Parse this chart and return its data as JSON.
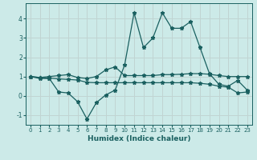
{
  "xlabel": "Humidex (Indice chaleur)",
  "ylabel": "",
  "background_color": "#cceae8",
  "grid_color": "#c0d4d2",
  "line_color": "#1a6060",
  "xlim": [
    -0.5,
    23.5
  ],
  "ylim": [
    -1.5,
    4.8
  ],
  "yticks": [
    -1,
    0,
    1,
    2,
    3,
    4
  ],
  "xticks": [
    0,
    1,
    2,
    3,
    4,
    5,
    6,
    7,
    8,
    9,
    10,
    11,
    12,
    13,
    14,
    15,
    16,
    17,
    18,
    19,
    20,
    21,
    22,
    23
  ],
  "line1_x": [
    0,
    1,
    2,
    3,
    4,
    5,
    6,
    7,
    8,
    9,
    10,
    11,
    12,
    13,
    14,
    15,
    16,
    17,
    18,
    19,
    20,
    21,
    22,
    23
  ],
  "line1_y": [
    1.0,
    0.9,
    0.9,
    0.2,
    0.15,
    -0.3,
    -1.2,
    -0.35,
    0.05,
    0.3,
    1.6,
    4.3,
    2.5,
    3.0,
    4.3,
    3.5,
    3.5,
    3.85,
    2.5,
    1.15,
    0.6,
    0.5,
    0.8,
    0.3
  ],
  "line2_x": [
    0,
    1,
    2,
    3,
    4,
    5,
    6,
    7,
    8,
    9,
    10,
    11,
    12,
    13,
    14,
    15,
    16,
    17,
    18,
    19,
    20,
    21,
    22,
    23
  ],
  "line2_y": [
    1.0,
    0.95,
    1.0,
    1.05,
    1.1,
    0.95,
    0.9,
    1.0,
    1.35,
    1.5,
    1.05,
    1.05,
    1.05,
    1.05,
    1.1,
    1.1,
    1.12,
    1.15,
    1.15,
    1.12,
    1.05,
    1.0,
    1.0,
    1.0
  ],
  "line3_x": [
    0,
    1,
    2,
    3,
    4,
    5,
    6,
    7,
    8,
    9,
    10,
    11,
    12,
    13,
    14,
    15,
    16,
    17,
    18,
    19,
    20,
    21,
    22,
    23
  ],
  "line3_y": [
    1.0,
    0.95,
    0.92,
    0.88,
    0.85,
    0.82,
    0.7,
    0.68,
    0.68,
    0.68,
    0.68,
    0.68,
    0.68,
    0.68,
    0.68,
    0.68,
    0.68,
    0.68,
    0.65,
    0.6,
    0.5,
    0.45,
    0.15,
    0.2
  ]
}
